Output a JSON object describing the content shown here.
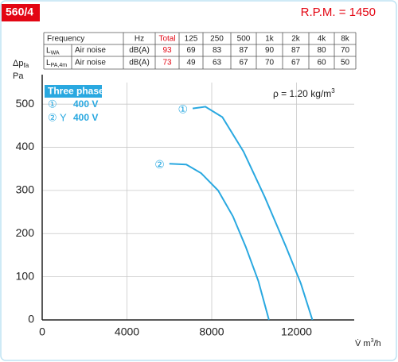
{
  "header": {
    "model": "560/4",
    "rpm": "R.P.M. = 1450"
  },
  "table": {
    "header": [
      "Frequency",
      "Hz",
      "Total",
      "125",
      "250",
      "500",
      "1k",
      "2k",
      "4k",
      "8k"
    ],
    "rows": [
      {
        "symbol": {
          "main": "L",
          "sub": "WA"
        },
        "source": "Air noise",
        "unit": "dB(A)",
        "total": 93,
        "bands": [
          69,
          83,
          87,
          90,
          87,
          80,
          70
        ]
      },
      {
        "symbol": {
          "main": "L",
          "sub": "PA,4m"
        },
        "source": "Air noise",
        "unit": "dB(A)",
        "total": 73,
        "bands": [
          49,
          63,
          67,
          70,
          67,
          60,
          50
        ]
      }
    ]
  },
  "chart_data": {
    "type": "line",
    "y_label": {
      "main": "Δp",
      "sub": "fa",
      "unit": "Pa"
    },
    "x_label": {
      "main": "V̇ m",
      "sup": "3",
      "rest": "/h"
    },
    "annotation": {
      "main": "ρ = 1.20 kg/m",
      "sup": "3"
    },
    "legend": {
      "title": "Three phase",
      "items": [
        {
          "marker": "①",
          "text": "400 V"
        },
        {
          "marker": "② Y",
          "text": "400 V"
        }
      ]
    },
    "xlim": [
      0,
      14000
    ],
    "ylim": [
      0,
      550
    ],
    "xticks": [
      0,
      4000,
      8000,
      12000
    ],
    "yticks": [
      0,
      100,
      200,
      300,
      400,
      500
    ],
    "grid": true,
    "series": [
      {
        "name": "①",
        "color": "#29a8e0",
        "x": [
          7100,
          7700,
          8500,
          9500,
          10500,
          11500,
          12200,
          12750
        ],
        "values": [
          490,
          494,
          470,
          390,
          285,
          170,
          85,
          0
        ]
      },
      {
        "name": "②",
        "color": "#29a8e0",
        "x": [
          6000,
          6800,
          7500,
          8300,
          9000,
          9600,
          10200,
          10700
        ],
        "values": [
          362,
          360,
          340,
          300,
          240,
          170,
          90,
          0
        ]
      }
    ]
  }
}
